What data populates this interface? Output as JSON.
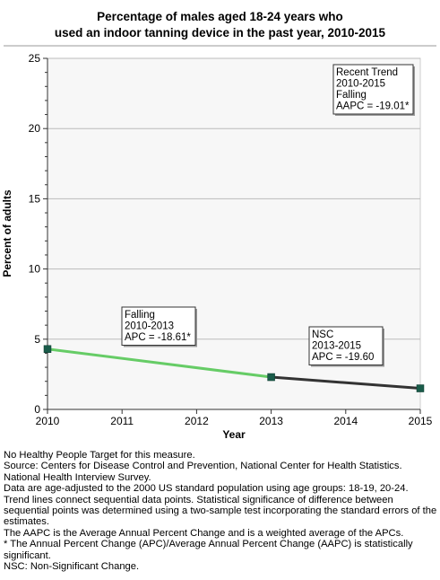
{
  "chart_data": {
    "type": "line",
    "title_lines": [
      "Percentage of males aged 18-24 years who",
      "used an indoor tanning device in the past year, 2010-2015"
    ],
    "xlabel": "Year",
    "ylabel": "Percent of adults",
    "xlim": [
      2010,
      2015
    ],
    "ylim": [
      0,
      25
    ],
    "x_ticks": [
      "2010",
      "2011",
      "2012",
      "2013",
      "2014",
      "2015"
    ],
    "y_ticks": [
      "0",
      "5",
      "10",
      "15",
      "20",
      "25"
    ],
    "grid": "horizontal",
    "points": [
      {
        "x": 2010,
        "y": 4.3
      },
      {
        "x": 2013,
        "y": 2.3
      },
      {
        "x": 2015,
        "y": 1.5
      }
    ],
    "segments": [
      {
        "from": 2010,
        "to": 2013,
        "color": "#66cc66",
        "label_lines": [
          "Falling",
          "2010-2013",
          "APC = -18.61*"
        ]
      },
      {
        "from": 2013,
        "to": 2015,
        "color": "#333333",
        "label_lines": [
          "NSC",
          "2013-2015",
          "APC = -19.60"
        ]
      }
    ],
    "marker_color": "#1a5c4a",
    "trend_box_lines": [
      "Recent Trend",
      "2010-2015",
      "Falling",
      "AAPC = -19.01*"
    ]
  },
  "footnotes": [
    "No Healthy People Target for this measure.",
    "Source: Centers for Disease Control and Prevention, National Center for Health Statistics. National Health Interview Survey.",
    "Data are age-adjusted to the 2000 US standard population using age groups: 18-19, 20-24.",
    "Trend lines connect sequential data points. Statistical significance of difference between sequential points was determined using a two-sample test incorporating the standard errors of the estimates.",
    "The AAPC is the Average Annual Percent Change and is a weighted average of the APCs.",
    "* The Annual Percent Change (APC)/Average Annual Percent Change (AAPC) is statistically significant.",
    "NSC: Non-Significant Change."
  ]
}
